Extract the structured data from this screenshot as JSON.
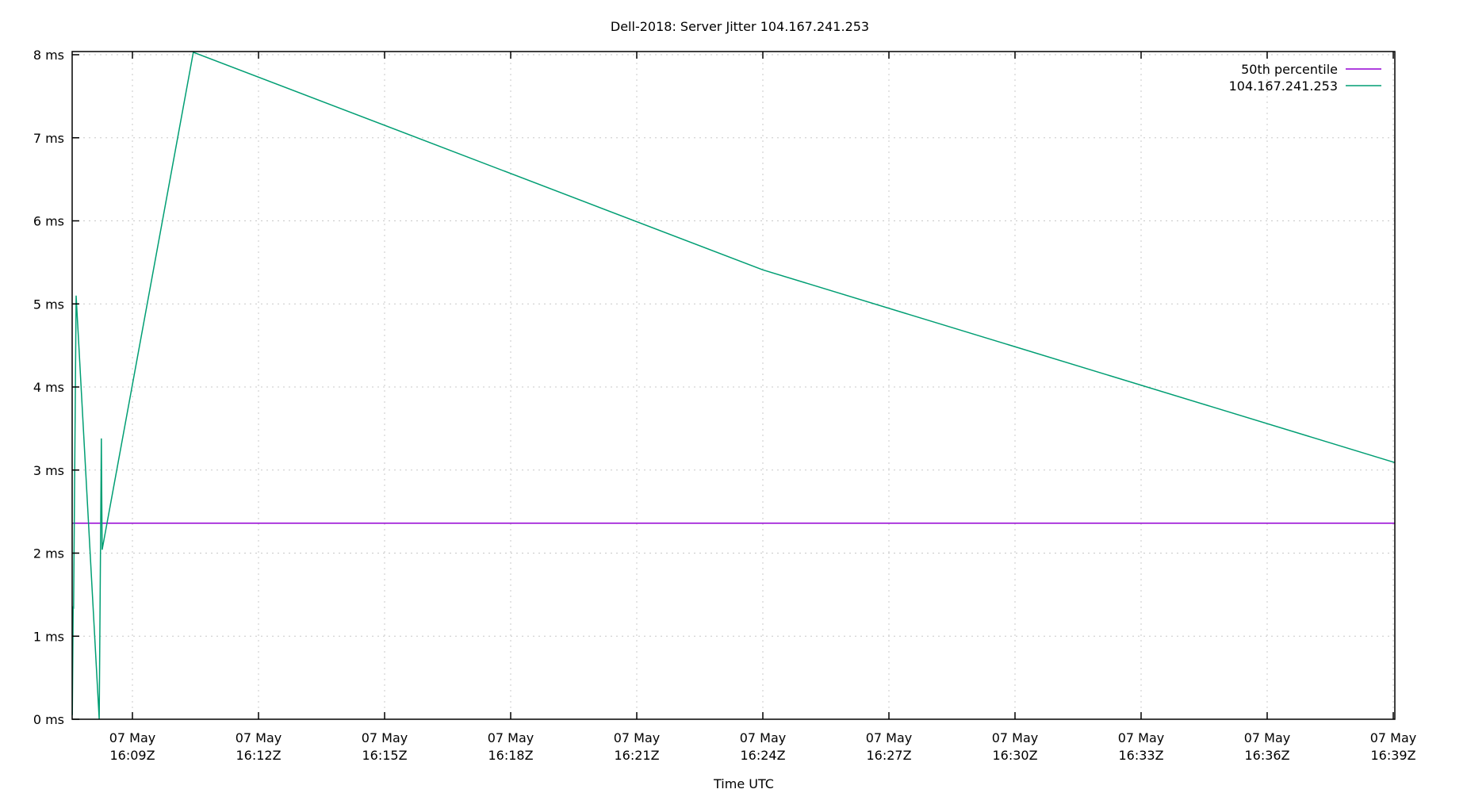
{
  "chart_data": {
    "type": "line",
    "title": "Dell-2018: Server Jitter 104.167.241.253",
    "xlabel": "Time UTC",
    "ylabel": "",
    "ylim": [
      0,
      8
    ],
    "xlim": [
      "16:07:34Z",
      "16:39:03Z"
    ],
    "grid": true,
    "legend_position": "top-right",
    "y_ticks": [
      "0 ms",
      "1 ms",
      "2 ms",
      "3 ms",
      "4 ms",
      "5 ms",
      "6 ms",
      "7 ms",
      "8 ms"
    ],
    "x_ticks": [
      {
        "date": "07 May",
        "time": "16:09Z"
      },
      {
        "date": "07 May",
        "time": "16:12Z"
      },
      {
        "date": "07 May",
        "time": "16:15Z"
      },
      {
        "date": "07 May",
        "time": "16:18Z"
      },
      {
        "date": "07 May",
        "time": "16:21Z"
      },
      {
        "date": "07 May",
        "time": "16:24Z"
      },
      {
        "date": "07 May",
        "time": "16:27Z"
      },
      {
        "date": "07 May",
        "time": "16:30Z"
      },
      {
        "date": "07 May",
        "time": "16:33Z"
      },
      {
        "date": "07 May",
        "time": "16:36Z"
      },
      {
        "date": "07 May",
        "time": "16:39Z"
      }
    ],
    "series": [
      {
        "name": "50th percentile",
        "color": "#9400d3",
        "x": [
          7.57,
          39.04
        ],
        "values": [
          2.36,
          2.36
        ]
      },
      {
        "name": "104.167.241.253",
        "color": "#009e73",
        "x": [
          7.57,
          7.59,
          7.6,
          7.66,
          8.21,
          8.26,
          8.28,
          10.45,
          24.0,
          39.04
        ],
        "values": [
          0.05,
          1.36,
          1.33,
          5.1,
          0.0,
          3.38,
          2.04,
          8.03,
          5.41,
          3.09
        ]
      }
    ]
  }
}
